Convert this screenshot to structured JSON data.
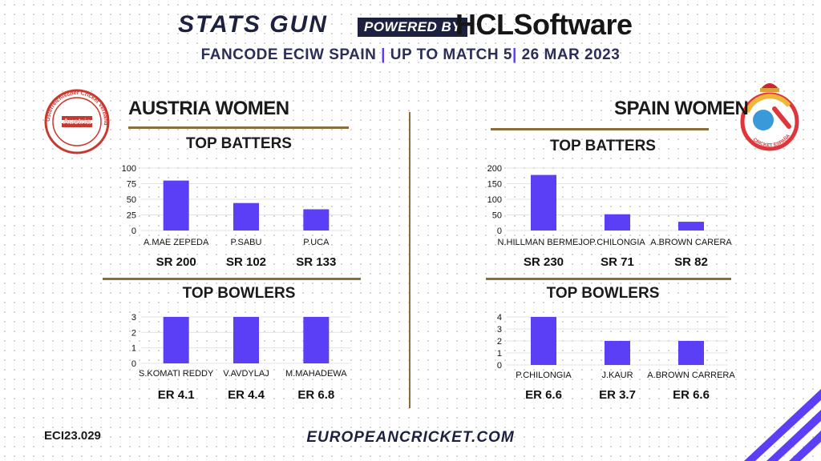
{
  "header": {
    "brand": "STATS GUN",
    "powered_by": "POWERED BY",
    "sponsor": "HCLSoftware",
    "tournament": "FANCODE ECIW SPAIN",
    "sep1": "|",
    "match": "UP TO MATCH  5",
    "sep2": "|",
    "date": "26 MAR 2023"
  },
  "teams": {
    "austria": {
      "name": "AUSTRIA WOMEN",
      "logo_text": "Austria",
      "logo_ring_text": "Österreichischer Cricket Verband"
    },
    "spain": {
      "name": "SPAIN WOMEN",
      "logo_ring_text": "CRICKET ESPAÑA"
    }
  },
  "sections": {
    "batters": "TOP BATTERS",
    "bowlers": "TOP BOWLERS"
  },
  "chart_data": [
    {
      "type": "bar",
      "team": "AUSTRIA WOMEN",
      "title": "TOP BATTERS",
      "categories": [
        "A.MAE ZEPEDA",
        "P.SABU",
        "P.UCA"
      ],
      "values": [
        80,
        44,
        34
      ],
      "ylim": [
        0,
        100
      ],
      "yticks": [
        0,
        25,
        50,
        75,
        100
      ],
      "stats": [
        "SR 200",
        "SR 102",
        "SR 133"
      ],
      "grid": true
    },
    {
      "type": "bar",
      "team": "AUSTRIA WOMEN",
      "title": "TOP BOWLERS",
      "categories": [
        "S.KOMATI REDDY",
        "V.AVDYLAJ",
        "M.MAHADEWA"
      ],
      "values": [
        3,
        3,
        3
      ],
      "ylim": [
        0,
        3
      ],
      "yticks": [
        0,
        1,
        2,
        3
      ],
      "stats": [
        "ER 4.1",
        "ER 4.4",
        "ER 6.8"
      ],
      "grid": true
    },
    {
      "type": "bar",
      "team": "SPAIN WOMEN",
      "title": "TOP BATTERS",
      "categories": [
        "N.HILLMAN BERMEJO",
        "P.CHILONGIA",
        "A.BROWN CARERA"
      ],
      "values": [
        178,
        52,
        28
      ],
      "ylim": [
        0,
        200
      ],
      "yticks": [
        0,
        50,
        100,
        150,
        200
      ],
      "stats": [
        "SR 230",
        "SR 71",
        "SR 82"
      ],
      "grid": true
    },
    {
      "type": "bar",
      "team": "SPAIN WOMEN",
      "title": "TOP BOWLERS",
      "categories": [
        "P.CHILONGIA",
        "J.KAUR",
        "A.BROWN CARRERA"
      ],
      "values": [
        4,
        2,
        2
      ],
      "ylim": [
        0,
        4
      ],
      "yticks": [
        0,
        1,
        2,
        3,
        4
      ],
      "stats": [
        "ER 6.6",
        "ER 3.7",
        "ER 6.6"
      ],
      "grid": true
    }
  ],
  "colors": {
    "bar": "#5b3ff6",
    "rule": "#8a6d3b",
    "navy": "#1c2140",
    "accent": "#5a3df5"
  },
  "footer": {
    "code": "ECI23.029",
    "website": "EUROPEANCRICKET.COM"
  }
}
